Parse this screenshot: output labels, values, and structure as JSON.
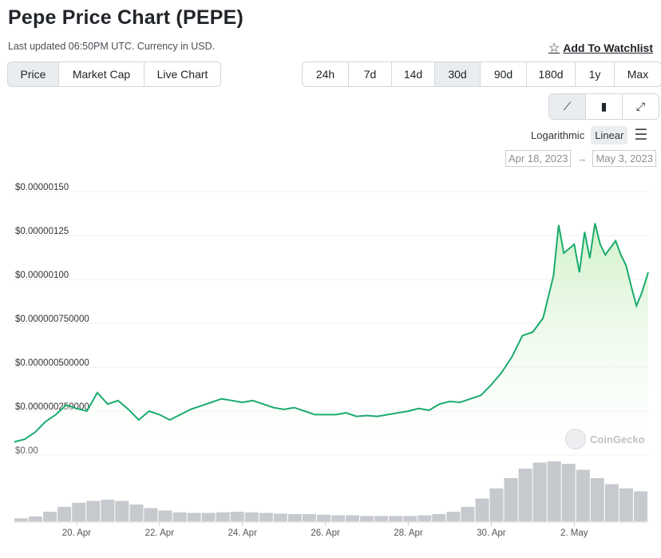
{
  "header": {
    "title": "Pepe Price Chart (PEPE)",
    "updated": "Last updated 06:50PM UTC. Currency in USD.",
    "watchlist_label": "Add To Watchlist"
  },
  "view_tabs": [
    "Price",
    "Market Cap",
    "Live Chart"
  ],
  "view_active": "Price",
  "range_tabs": [
    "24h",
    "7d",
    "14d",
    "30d",
    "90d",
    "180d",
    "1y",
    "Max"
  ],
  "range_active": "30d",
  "chart_types": [
    {
      "name": "line-chart-icon",
      "glyph": "⟋",
      "active": true
    },
    {
      "name": "candlestick-icon",
      "glyph": "▮",
      "active": false
    },
    {
      "name": "fullscreen-icon",
      "glyph": "⤢",
      "active": false
    }
  ],
  "scale": {
    "log_label": "Logarithmic",
    "linear_label": "Linear",
    "active": "Linear"
  },
  "date_range": {
    "from": "Apr 18, 2023",
    "arrow": "→",
    "to": "May 3, 2023"
  },
  "watermark": "CoinGecko",
  "colors": {
    "line": "#1aab6e",
    "fill_top": "#c8efbe",
    "volume": "#c6c9cd",
    "grid": "#eef0f2",
    "active_bg": "#eaedf0"
  },
  "chart_data": {
    "type": "area",
    "yticks": [
      {
        "value": 0,
        "label": "$0.00"
      },
      {
        "value": 2.5e-07,
        "label": "$0.000000250000"
      },
      {
        "value": 5e-07,
        "label": "$0.000000500000"
      },
      {
        "value": 7.5e-07,
        "label": "$0.000000750000"
      },
      {
        "value": 1e-06,
        "label": "$0.00000100"
      },
      {
        "value": 1.25e-06,
        "label": "$0.00000125"
      },
      {
        "value": 1.5e-06,
        "label": "$0.00000150"
      }
    ],
    "ylim": [
      0,
      1.5e-06
    ],
    "xlim": [
      "2023-04-18T12:00",
      "2023-05-03T18:50"
    ],
    "xticks": [
      {
        "value": "2023-04-20T00:00",
        "label": "20. Apr"
      },
      {
        "value": "2023-04-22T00:00",
        "label": "22. Apr"
      },
      {
        "value": "2023-04-24T00:00",
        "label": "24. Apr"
      },
      {
        "value": "2023-04-26T00:00",
        "label": "26. Apr"
      },
      {
        "value": "2023-04-28T00:00",
        "label": "28. Apr"
      },
      {
        "value": "2023-04-30T00:00",
        "label": "30. Apr"
      },
      {
        "value": "2023-05-02T00:00",
        "label": "2. May"
      }
    ],
    "series": [
      {
        "values": [
          [
            "2023-04-18T12:00",
            7.5e-08
          ],
          [
            "2023-04-18T18:00",
            9e-08
          ],
          [
            "2023-04-19T00:00",
            1.3e-07
          ],
          [
            "2023-04-19T06:00",
            1.9e-07
          ],
          [
            "2023-04-19T12:00",
            2.3e-07
          ],
          [
            "2023-04-19T18:00",
            2.85e-07
          ],
          [
            "2023-04-20T00:00",
            2.65e-07
          ],
          [
            "2023-04-20T06:00",
            2.5e-07
          ],
          [
            "2023-04-20T12:00",
            3.55e-07
          ],
          [
            "2023-04-20T18:00",
            2.9e-07
          ],
          [
            "2023-04-21T00:00",
            3.1e-07
          ],
          [
            "2023-04-21T06:00",
            2.6e-07
          ],
          [
            "2023-04-21T12:00",
            2e-07
          ],
          [
            "2023-04-21T18:00",
            2.5e-07
          ],
          [
            "2023-04-22T00:00",
            2.3e-07
          ],
          [
            "2023-04-22T06:00",
            2e-07
          ],
          [
            "2023-04-22T12:00",
            2.3e-07
          ],
          [
            "2023-04-22T18:00",
            2.6e-07
          ],
          [
            "2023-04-23T00:00",
            2.8e-07
          ],
          [
            "2023-04-23T06:00",
            3e-07
          ],
          [
            "2023-04-23T12:00",
            3.2e-07
          ],
          [
            "2023-04-23T18:00",
            3.1e-07
          ],
          [
            "2023-04-24T00:00",
            3e-07
          ],
          [
            "2023-04-24T06:00",
            3.1e-07
          ],
          [
            "2023-04-24T12:00",
            2.9e-07
          ],
          [
            "2023-04-24T18:00",
            2.7e-07
          ],
          [
            "2023-04-25T00:00",
            2.6e-07
          ],
          [
            "2023-04-25T06:00",
            2.7e-07
          ],
          [
            "2023-04-25T12:00",
            2.5e-07
          ],
          [
            "2023-04-25T18:00",
            2.3e-07
          ],
          [
            "2023-04-26T00:00",
            2.3e-07
          ],
          [
            "2023-04-26T06:00",
            2.3e-07
          ],
          [
            "2023-04-26T12:00",
            2.4e-07
          ],
          [
            "2023-04-26T18:00",
            2.2e-07
          ],
          [
            "2023-04-27T00:00",
            2.25e-07
          ],
          [
            "2023-04-27T06:00",
            2.2e-07
          ],
          [
            "2023-04-27T12:00",
            2.3e-07
          ],
          [
            "2023-04-27T18:00",
            2.4e-07
          ],
          [
            "2023-04-28T00:00",
            2.5e-07
          ],
          [
            "2023-04-28T06:00",
            2.65e-07
          ],
          [
            "2023-04-28T12:00",
            2.55e-07
          ],
          [
            "2023-04-28T18:00",
            2.9e-07
          ],
          [
            "2023-04-29T00:00",
            3.05e-07
          ],
          [
            "2023-04-29T06:00",
            3e-07
          ],
          [
            "2023-04-29T12:00",
            3.2e-07
          ],
          [
            "2023-04-29T18:00",
            3.4e-07
          ],
          [
            "2023-04-30T00:00",
            4e-07
          ],
          [
            "2023-04-30T06:00",
            4.7e-07
          ],
          [
            "2023-04-30T12:00",
            5.6e-07
          ],
          [
            "2023-04-30T18:00",
            6.8e-07
          ],
          [
            "2023-05-01T00:00",
            7e-07
          ],
          [
            "2023-05-01T06:00",
            7.8e-07
          ],
          [
            "2023-05-01T12:00",
            1.02e-06
          ],
          [
            "2023-05-01T15:00",
            1.31e-06
          ],
          [
            "2023-05-01T18:00",
            1.15e-06
          ],
          [
            "2023-05-02T00:00",
            1.2e-06
          ],
          [
            "2023-05-02T03:00",
            1.04e-06
          ],
          [
            "2023-05-02T06:00",
            1.27e-06
          ],
          [
            "2023-05-02T09:00",
            1.12e-06
          ],
          [
            "2023-05-02T12:00",
            1.32e-06
          ],
          [
            "2023-05-02T15:00",
            1.2e-06
          ],
          [
            "2023-05-02T18:00",
            1.14e-06
          ],
          [
            "2023-05-03T00:00",
            1.22e-06
          ],
          [
            "2023-05-03T03:00",
            1.14e-06
          ],
          [
            "2023-05-03T06:00",
            1.08e-06
          ],
          [
            "2023-05-03T09:00",
            9.6e-07
          ],
          [
            "2023-05-03T12:00",
            8.5e-07
          ],
          [
            "2023-05-03T15:00",
            9.2e-07
          ],
          [
            "2023-05-03T18:50",
            1.04e-06
          ]
        ]
      }
    ],
    "volume_relative": [
      0.05,
      0.08,
      0.16,
      0.24,
      0.31,
      0.34,
      0.36,
      0.34,
      0.28,
      0.22,
      0.18,
      0.15,
      0.14,
      0.14,
      0.15,
      0.16,
      0.15,
      0.14,
      0.13,
      0.12,
      0.12,
      0.11,
      0.1,
      0.1,
      0.09,
      0.09,
      0.09,
      0.09,
      0.1,
      0.12,
      0.16,
      0.24,
      0.38,
      0.55,
      0.72,
      0.88,
      0.98,
      1.0,
      0.96,
      0.86,
      0.72,
      0.62,
      0.55,
      0.5
    ],
    "grid": true,
    "legend": "none"
  }
}
